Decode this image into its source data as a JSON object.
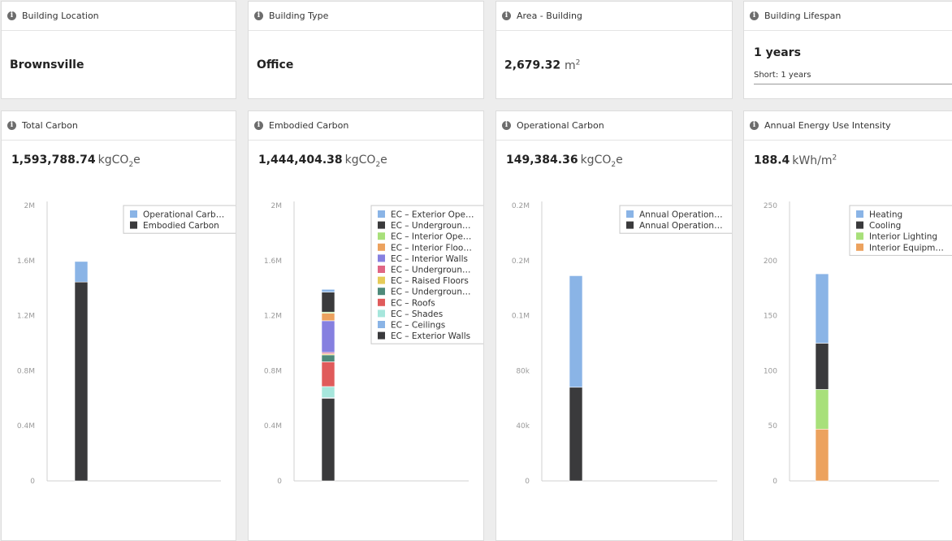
{
  "summary": {
    "location": {
      "title": "Building Location",
      "value": "Brownsville"
    },
    "type": {
      "title": "Building Type",
      "value": "Office"
    },
    "area": {
      "title": "Area - Building",
      "value": "2,679.32",
      "unit_base": "m",
      "unit_exp": "2"
    },
    "lifespan": {
      "title": "Building Lifespan",
      "value": "1 years",
      "sub": "Short: 1 years"
    }
  },
  "icons": {
    "info": "info-icon"
  },
  "colors": {
    "blue": "#8ab4e6",
    "dark": "#3a3a3c",
    "green": "#a8e07a",
    "orange": "#eca25e",
    "purple": "#8680e0",
    "pink": "#e06684",
    "yellow": "#e6cb58",
    "teal": "#4e8a7a",
    "red": "#e05b5b",
    "cyan": "#a6e6dc"
  },
  "chart_data": [
    {
      "type": "bar",
      "title": "Total Carbon",
      "metric": {
        "value": "1,593,788.74",
        "unit_pre": "kgCO",
        "unit_sub": "2",
        "unit_post": "e"
      },
      "ylim": [
        0,
        2000000
      ],
      "ticks": [
        {
          "v": 0,
          "label": "0"
        },
        {
          "v": 400000,
          "label": "0.4M"
        },
        {
          "v": 800000,
          "label": "0.8M"
        },
        {
          "v": 1200000,
          "label": "1.2M"
        },
        {
          "v": 1600000,
          "label": "1.6M"
        },
        {
          "v": 2000000,
          "label": "2M"
        }
      ],
      "legend": {
        "position": "top-right",
        "width": 130
      },
      "bar_x": 90,
      "series": [
        {
          "name": "Operational Carb…",
          "value": 149384.36,
          "color": "#8ab4e6"
        },
        {
          "name": "Embodied Carbon",
          "value": 1444404.38,
          "color": "#3a3a3c"
        }
      ]
    },
    {
      "type": "bar",
      "title": "Embodied Carbon",
      "metric": {
        "value": "1,444,404.38",
        "unit_pre": "kgCO",
        "unit_sub": "2",
        "unit_post": "e"
      },
      "ylim": [
        0,
        2000000
      ],
      "ticks": [
        {
          "v": 0,
          "label": "0"
        },
        {
          "v": 400000,
          "label": "0.4M"
        },
        {
          "v": 800000,
          "label": "0.8M"
        },
        {
          "v": 1200000,
          "label": "1.2M"
        },
        {
          "v": 1600000,
          "label": "1.6M"
        },
        {
          "v": 2000000,
          "label": "2M"
        }
      ],
      "legend": {
        "position": "top-right",
        "width": 130
      },
      "bar_x": 90,
      "series": [
        {
          "name": "EC – Exterior Ope…",
          "value": 20000,
          "color": "#8ab4e6"
        },
        {
          "name": "EC – Undergroun…",
          "value": 145000,
          "color": "#3a3a3c"
        },
        {
          "name": "EC – Interior Ope…",
          "value": 8000,
          "color": "#a8e07a"
        },
        {
          "name": "EC – Interior Floo…",
          "value": 55000,
          "color": "#eca25e"
        },
        {
          "name": "EC – Interior Walls",
          "value": 230000,
          "color": "#8680e0"
        },
        {
          "name": "EC – Undergroun…",
          "value": 10000,
          "color": "#e06684"
        },
        {
          "name": "EC – Raised Floors",
          "value": 8000,
          "color": "#e6cb58"
        },
        {
          "name": "EC – Undergroun…",
          "value": 50000,
          "color": "#4e8a7a"
        },
        {
          "name": "EC – Roofs",
          "value": 180000,
          "color": "#e05b5b"
        },
        {
          "name": "EC – Shades",
          "value": 80000,
          "color": "#a6e6dc"
        },
        {
          "name": "EC – Ceilings",
          "value": 5000,
          "color": "#8ab4e6"
        },
        {
          "name": "EC – Exterior Walls",
          "value": 600000,
          "color": "#3a3a3c"
        }
      ]
    },
    {
      "type": "bar",
      "title": "Operational Carbon",
      "metric": {
        "value": "149,384.36",
        "unit_pre": "kgCO",
        "unit_sub": "2",
        "unit_post": "e"
      },
      "ylim": [
        0,
        200000
      ],
      "ticks": [
        {
          "v": 0,
          "label": "0"
        },
        {
          "v": 40000,
          "label": "40k"
        },
        {
          "v": 80000,
          "label": "80k"
        },
        {
          "v": 120000,
          "label": "0.1M"
        },
        {
          "v": 160000,
          "label": "0.2M"
        },
        {
          "v": 200000,
          "label": "0.2M"
        }
      ],
      "legend": {
        "position": "top-right",
        "width": 130
      },
      "bar_x": 90,
      "series": [
        {
          "name": "Annual Operation…",
          "value": 81000,
          "color": "#8ab4e6"
        },
        {
          "name": "Annual Operation…",
          "value": 68000,
          "color": "#3a3a3c"
        }
      ]
    },
    {
      "type": "bar",
      "title": "Annual Energy Use Intensity",
      "metric": {
        "value": "188.4",
        "unit_pre": "kWh/m",
        "unit_sup": "2"
      },
      "ylim": [
        0,
        250
      ],
      "ticks": [
        {
          "v": 0,
          "label": "0"
        },
        {
          "v": 50,
          "label": "50"
        },
        {
          "v": 100,
          "label": "100"
        },
        {
          "v": 150,
          "label": "150"
        },
        {
          "v": 200,
          "label": "200"
        },
        {
          "v": 250,
          "label": "250"
        }
      ],
      "legend": {
        "position": "top-right",
        "width": 120
      },
      "bar_x": 88,
      "series": [
        {
          "name": "Heating",
          "value": 63,
          "color": "#8ab4e6"
        },
        {
          "name": "Cooling",
          "value": 42,
          "color": "#3a3a3c"
        },
        {
          "name": "Interior Lighting",
          "value": 36,
          "color": "#a8e07a"
        },
        {
          "name": "Interior Equipm…",
          "value": 47,
          "color": "#eca25e"
        }
      ]
    }
  ]
}
